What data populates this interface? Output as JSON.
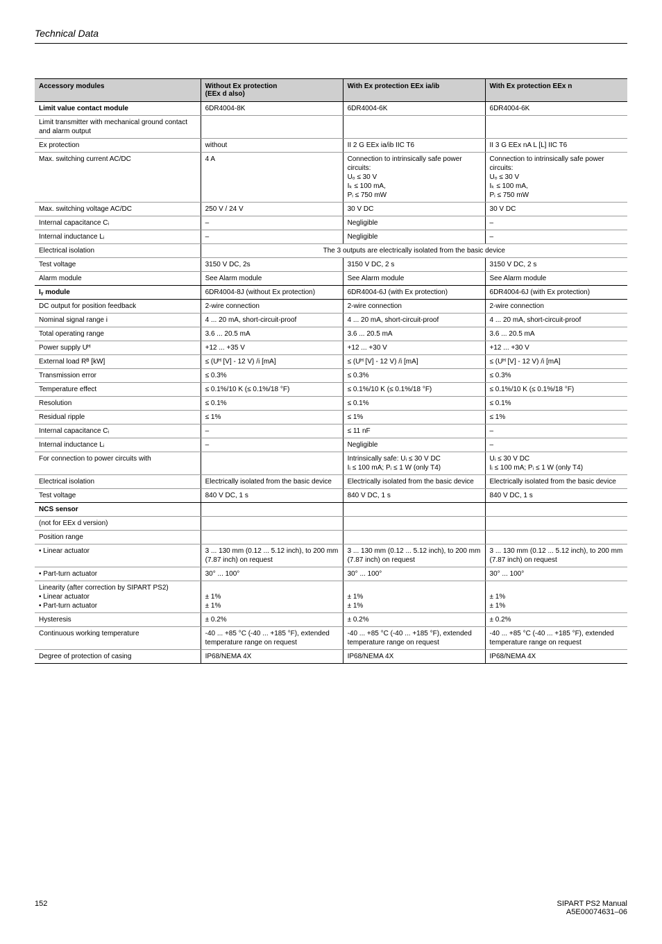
{
  "page": {
    "header": "Technical Data",
    "num": "152",
    "manual": "SIPART PS2  Manual",
    "ref": "A5E00074631–06"
  },
  "head": {
    "c0": "Accessory modules",
    "c1": "Without Ex protection\n(EEx d also)",
    "c2": "With Ex protection EEx ia/ib",
    "c3": "With Ex protection EEx n"
  },
  "r": [
    {
      "l": "Limit value contact module",
      "b": 1,
      "v": [
        "6DR4004-8K",
        "6DR4004-6K",
        "6DR4004-6K"
      ]
    },
    {
      "l": "Limit transmitter with mechanical ground contact and alarm output",
      "v": [
        "",
        "",
        ""
      ]
    },
    {
      "l": "Ex protection",
      "v": [
        "without",
        "II 2 G EEx ia/ib IIC T6",
        "II 3 G EEx nA L [L] IIC T6"
      ]
    },
    {
      "l": "Max. switching current AC/DC",
      "v": [
        "4 A",
        "Connection to intrinsically safe power circuits:\nUₒ ≤ 30 V\nIₖ ≤ 100 mA,\nPᵢ ≤ 750 mW",
        "Connection to intrinsically safe power circuits:\nUₒ ≤ 30 V\nIₖ ≤ 100 mA,\nPᵢ ≤ 750 mW"
      ]
    },
    {
      "l": "Max. switching voltage AC/DC",
      "v": [
        "250 V / 24 V",
        "30 V DC",
        "30 V DC"
      ]
    },
    {
      "l": "Internal capacitance Cᵢ",
      "v": [
        "–",
        "Negligible",
        "–"
      ]
    },
    {
      "l": "Internal inductance Lᵢ",
      "v": [
        "–",
        "Negligible",
        "–"
      ]
    },
    {
      "l": "Electrical isolation",
      "span": "The 3 outputs are electrically isolated from the basic device"
    },
    {
      "l": "Test voltage",
      "v": [
        "3150 V DC, 2s",
        "3150 V DC, 2 s",
        "3150 V DC, 2 s"
      ]
    },
    {
      "l": "Alarm module",
      "v": [
        "See Alarm module",
        "See Alarm module",
        "See Alarm module"
      ],
      "heavy": 1
    },
    {
      "l": "Iᵧ module",
      "b": 1,
      "v": [
        "6DR4004-8J (without Ex protection)",
        "6DR4004-6J (with Ex protection)",
        "6DR4004-6J (with Ex protection)"
      ],
      "heavy": 1
    },
    {
      "l": "DC output for position feedback",
      "v": [
        "2-wire connection",
        "2-wire connection",
        "2-wire connection"
      ]
    },
    {
      "l": "Nominal signal range i",
      "v": [
        "4 ... 20 mA, short-circuit-proof",
        "4 ... 20 mA, short-circuit-proof",
        "4 ... 20 mA, short-circuit-proof"
      ]
    },
    {
      "l": "Total operating range",
      "v": [
        "3.6 ... 20.5 mA",
        "3.6 ... 20.5 mA",
        "3.6 ... 20.5 mA"
      ]
    },
    {
      "l": "Power supply Uᴴ",
      "v": [
        "+12 ... +35 V",
        "+12 ... +30 V",
        "+12 ... +30 V"
      ]
    },
    {
      "l": "External load Rᴮ [kW]",
      "v": [
        "≤ (Uᴴ [V] - 12 V) /i [mA]",
        "≤ (Uᴴ [V] - 12 V) /i [mA]",
        "≤ (Uᴴ [V] - 12 V) /i [mA]"
      ]
    },
    {
      "l": "Transmission error",
      "v": [
        "≤ 0.3%",
        "≤ 0.3%",
        "≤ 0.3%"
      ]
    },
    {
      "l": "Temperature effect",
      "v": [
        "≤ 0.1%/10 K (≤ 0.1%/18 °F)",
        "≤ 0.1%/10 K (≤ 0.1%/18 °F)",
        "≤ 0.1%/10 K (≤ 0.1%/18 °F)"
      ]
    },
    {
      "l": "Resolution",
      "v": [
        "≤ 0.1%",
        "≤ 0.1%",
        "≤ 0.1%"
      ]
    },
    {
      "l": "Residual ripple",
      "v": [
        "≤ 1%",
        "≤ 1%",
        "≤ 1%"
      ]
    },
    {
      "l": "Internal capacitance Cᵢ",
      "v": [
        "–",
        "≤ 11 nF",
        "–"
      ]
    },
    {
      "l": "Internal inductance Lᵢ",
      "v": [
        "–",
        "Negligible",
        "–"
      ]
    },
    {
      "l": "For connection to power circuits with",
      "v": [
        "",
        "Intrinsically safe: Uᵢ ≤ 30 V DC\nIᵢ ≤ 100 mA; Pᵢ ≤ 1 W (only T4)",
        "Uᵢ ≤ 30 V DC\nIᵢ ≤ 100 mA; Pᵢ ≤ 1 W (only T4)"
      ]
    },
    {
      "l": "Electrical isolation",
      "v": [
        "Electrically isolated from the basic device",
        "Electrically isolated from the basic device",
        "Electrically isolated from the basic device"
      ]
    },
    {
      "l": "Test voltage",
      "v": [
        "840 V DC, 1 s",
        "840 V DC, 1 s",
        "840 V DC, 1 s"
      ],
      "heavy": 1
    },
    {
      "l": "NCS sensor",
      "b": 1,
      "v": [
        "",
        "",
        ""
      ]
    },
    {
      "l": "(not for EEx d version)",
      "v": [
        "",
        "",
        ""
      ]
    },
    {
      "l": "Position range",
      "v": [
        "",
        "",
        ""
      ]
    },
    {
      "l": "• Linear actuator",
      "v": [
        "3 ... 130 mm (0.12 ... 5.12 inch), to 200 mm (7.87 inch) on request",
        "3 ... 130 mm (0.12 ... 5.12 inch), to 200 mm (7.87 inch) on request",
        "3 ... 130 mm (0.12 ... 5.12 inch), to 200 mm (7.87 inch) on request"
      ]
    },
    {
      "l": "• Part-turn actuator",
      "v": [
        "30° ... 100°",
        "30° ... 100°",
        "30° ... 100°"
      ]
    },
    {
      "l": "Linearity (after correction by SIPART PS2)\n• Linear actuator\n• Part-turn actuator",
      "v": [
        "\n± 1%\n± 1%",
        "\n± 1%\n± 1%",
        "\n± 1%\n± 1%"
      ]
    },
    {
      "l": "Hysteresis",
      "v": [
        "± 0.2%",
        "± 0.2%",
        "± 0.2%"
      ]
    },
    {
      "l": "Continuous working temperature",
      "v": [
        "-40 ... +85 °C (-40 ... +185 °F), extended temperature range on request",
        "-40 ... +85 °C (-40 ... +185 °F), extended temperature range on request",
        "-40 ... +85 °C (-40 ... +185 °F), extended temperature range on request"
      ]
    },
    {
      "l": "Degree of protection of casing",
      "v": [
        "IP68/NEMA 4X",
        "IP68/NEMA 4X",
        "IP68/NEMA 4X"
      ],
      "heavy": 1
    }
  ]
}
